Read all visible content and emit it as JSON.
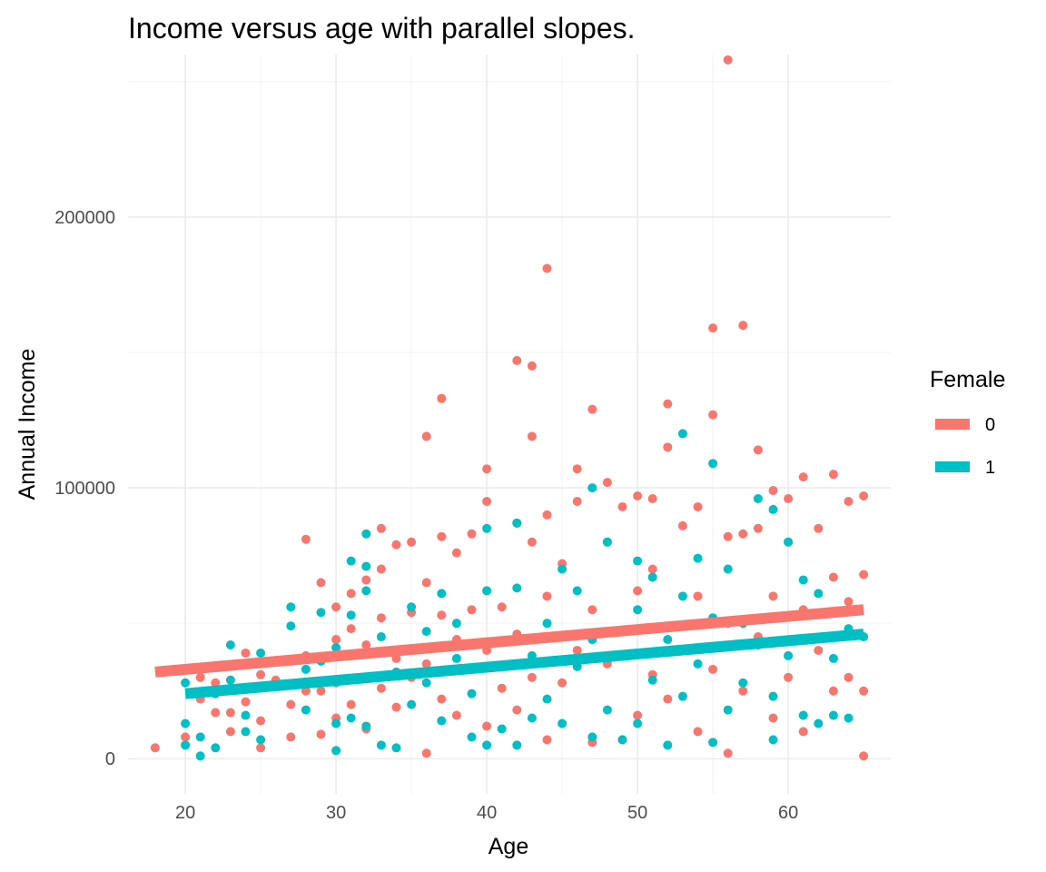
{
  "chart_data": {
    "type": "scatter",
    "title": "Income versus age with parallel slopes.",
    "xlabel": "Age",
    "ylabel": "Annual Income",
    "xlim": [
      16.2,
      66.8
    ],
    "ylim": [
      -13000,
      260000
    ],
    "x_ticks": [
      20,
      30,
      40,
      50,
      60
    ],
    "y_ticks": [
      0,
      100000,
      200000
    ],
    "x_tick_labels": [
      "20",
      "30",
      "40",
      "50",
      "60"
    ],
    "y_tick_labels": [
      "0",
      "100000",
      "200000"
    ],
    "grid": true,
    "legend": {
      "title": "Female",
      "position": "right"
    },
    "series": [
      {
        "name": "0",
        "color": "#F8766D",
        "points": [
          [
            18,
            4000
          ],
          [
            20,
            8000
          ],
          [
            21,
            22000
          ],
          [
            21,
            30000
          ],
          [
            22,
            17000
          ],
          [
            22,
            28000
          ],
          [
            23,
            10000
          ],
          [
            23,
            17000
          ],
          [
            24,
            21000
          ],
          [
            24,
            26000
          ],
          [
            24,
            39000
          ],
          [
            25,
            4000
          ],
          [
            25,
            14000
          ],
          [
            25,
            31000
          ],
          [
            26,
            29000
          ],
          [
            27,
            8000
          ],
          [
            27,
            20000
          ],
          [
            27,
            36000
          ],
          [
            28,
            81000
          ],
          [
            28,
            25000
          ],
          [
            28,
            38000
          ],
          [
            29,
            9000
          ],
          [
            29,
            25000
          ],
          [
            29,
            65000
          ],
          [
            30,
            15000
          ],
          [
            30,
            28000
          ],
          [
            30,
            44000
          ],
          [
            30,
            56000
          ],
          [
            31,
            20000
          ],
          [
            31,
            48000
          ],
          [
            31,
            61000
          ],
          [
            32,
            11000
          ],
          [
            32,
            42000
          ],
          [
            32,
            66000
          ],
          [
            33,
            26000
          ],
          [
            33,
            52000
          ],
          [
            33,
            70000
          ],
          [
            33,
            85000
          ],
          [
            34,
            19000
          ],
          [
            34,
            37000
          ],
          [
            34,
            79000
          ],
          [
            35,
            30000
          ],
          [
            35,
            54000
          ],
          [
            35,
            80000
          ],
          [
            36,
            2000
          ],
          [
            36,
            35000
          ],
          [
            36,
            65000
          ],
          [
            36,
            119000
          ],
          [
            37,
            22000
          ],
          [
            37,
            53000
          ],
          [
            37,
            82000
          ],
          [
            37,
            133000
          ],
          [
            38,
            16000
          ],
          [
            38,
            44000
          ],
          [
            38,
            76000
          ],
          [
            39,
            33000
          ],
          [
            39,
            55000
          ],
          [
            39,
            83000
          ],
          [
            40,
            12000
          ],
          [
            40,
            40000
          ],
          [
            40,
            107000
          ],
          [
            40,
            95000
          ],
          [
            41,
            26000
          ],
          [
            41,
            56000
          ],
          [
            42,
            18000
          ],
          [
            42,
            46000
          ],
          [
            42,
            147000
          ],
          [
            42,
            87000
          ],
          [
            43,
            30000
          ],
          [
            43,
            145000
          ],
          [
            43,
            119000
          ],
          [
            43,
            80000
          ],
          [
            44,
            7000
          ],
          [
            44,
            60000
          ],
          [
            44,
            181000
          ],
          [
            44,
            90000
          ],
          [
            45,
            28000
          ],
          [
            45,
            72000
          ],
          [
            46,
            40000
          ],
          [
            46,
            95000
          ],
          [
            46,
            107000
          ],
          [
            47,
            6000
          ],
          [
            47,
            55000
          ],
          [
            47,
            129000
          ],
          [
            48,
            35000
          ],
          [
            48,
            102000
          ],
          [
            48,
            80000
          ],
          [
            49,
            7000
          ],
          [
            49,
            47000
          ],
          [
            49,
            93000
          ],
          [
            50,
            16000
          ],
          [
            50,
            62000
          ],
          [
            50,
            97000
          ],
          [
            51,
            31000
          ],
          [
            51,
            70000
          ],
          [
            51,
            96000
          ],
          [
            52,
            22000
          ],
          [
            52,
            115000
          ],
          [
            52,
            131000
          ],
          [
            53,
            40000
          ],
          [
            53,
            86000
          ],
          [
            54,
            10000
          ],
          [
            54,
            60000
          ],
          [
            54,
            93000
          ],
          [
            55,
            33000
          ],
          [
            55,
            127000
          ],
          [
            55,
            159000
          ],
          [
            56,
            2000
          ],
          [
            56,
            50000
          ],
          [
            56,
            82000
          ],
          [
            56,
            258000
          ],
          [
            57,
            25000
          ],
          [
            57,
            160000
          ],
          [
            57,
            83000
          ],
          [
            58,
            45000
          ],
          [
            58,
            114000
          ],
          [
            58,
            85000
          ],
          [
            59,
            15000
          ],
          [
            59,
            60000
          ],
          [
            59,
            99000
          ],
          [
            60,
            30000
          ],
          [
            60,
            80000
          ],
          [
            60,
            96000
          ],
          [
            61,
            10000
          ],
          [
            61,
            55000
          ],
          [
            61,
            104000
          ],
          [
            62,
            40000
          ],
          [
            62,
            85000
          ],
          [
            63,
            25000
          ],
          [
            63,
            105000
          ],
          [
            63,
            67000
          ],
          [
            64,
            30000
          ],
          [
            64,
            95000
          ],
          [
            64,
            58000
          ],
          [
            65,
            1000
          ],
          [
            65,
            25000
          ],
          [
            65,
            68000
          ],
          [
            65,
            97000
          ]
        ]
      },
      {
        "name": "1",
        "color": "#00BFC4",
        "points": [
          [
            20,
            5000
          ],
          [
            20,
            13000
          ],
          [
            20,
            28000
          ],
          [
            21,
            1000
          ],
          [
            21,
            8000
          ],
          [
            22,
            4000
          ],
          [
            22,
            24000
          ],
          [
            23,
            42000
          ],
          [
            23,
            29000
          ],
          [
            24,
            10000
          ],
          [
            24,
            16000
          ],
          [
            25,
            7000
          ],
          [
            25,
            39000
          ],
          [
            26,
            27000
          ],
          [
            27,
            49000
          ],
          [
            27,
            56000
          ],
          [
            28,
            18000
          ],
          [
            28,
            33000
          ],
          [
            29,
            36000
          ],
          [
            29,
            54000
          ],
          [
            30,
            3000
          ],
          [
            30,
            13000
          ],
          [
            30,
            41000
          ],
          [
            31,
            15000
          ],
          [
            31,
            73000
          ],
          [
            31,
            53000
          ],
          [
            32,
            12000
          ],
          [
            32,
            62000
          ],
          [
            32,
            83000
          ],
          [
            32,
            71000
          ],
          [
            33,
            5000
          ],
          [
            33,
            45000
          ],
          [
            34,
            4000
          ],
          [
            34,
            32000
          ],
          [
            35,
            56000
          ],
          [
            35,
            20000
          ],
          [
            36,
            47000
          ],
          [
            36,
            28000
          ],
          [
            37,
            61000
          ],
          [
            37,
            14000
          ],
          [
            38,
            37000
          ],
          [
            38,
            50000
          ],
          [
            39,
            8000
          ],
          [
            39,
            24000
          ],
          [
            40,
            5000
          ],
          [
            40,
            62000
          ],
          [
            40,
            85000
          ],
          [
            41,
            11000
          ],
          [
            41,
            34000
          ],
          [
            42,
            5000
          ],
          [
            42,
            63000
          ],
          [
            42,
            87000
          ],
          [
            43,
            15000
          ],
          [
            43,
            38000
          ],
          [
            44,
            22000
          ],
          [
            44,
            50000
          ],
          [
            45,
            13000
          ],
          [
            45,
            70000
          ],
          [
            46,
            34000
          ],
          [
            46,
            62000
          ],
          [
            47,
            8000
          ],
          [
            47,
            100000
          ],
          [
            47,
            44000
          ],
          [
            48,
            18000
          ],
          [
            48,
            80000
          ],
          [
            49,
            7000
          ],
          [
            49,
            38000
          ],
          [
            50,
            13000
          ],
          [
            50,
            55000
          ],
          [
            50,
            73000
          ],
          [
            51,
            29000
          ],
          [
            51,
            67000
          ],
          [
            52,
            5000
          ],
          [
            52,
            44000
          ],
          [
            53,
            23000
          ],
          [
            53,
            120000
          ],
          [
            53,
            60000
          ],
          [
            54,
            35000
          ],
          [
            54,
            74000
          ],
          [
            55,
            6000
          ],
          [
            55,
            109000
          ],
          [
            55,
            52000
          ],
          [
            56,
            18000
          ],
          [
            56,
            70000
          ],
          [
            57,
            28000
          ],
          [
            57,
            50000
          ],
          [
            58,
            96000
          ],
          [
            58,
            42000
          ],
          [
            59,
            7000
          ],
          [
            59,
            92000
          ],
          [
            59,
            23000
          ],
          [
            60,
            38000
          ],
          [
            60,
            80000
          ],
          [
            61,
            16000
          ],
          [
            61,
            66000
          ],
          [
            62,
            13000
          ],
          [
            62,
            61000
          ],
          [
            63,
            37000
          ],
          [
            63,
            16000
          ],
          [
            64,
            15000
          ],
          [
            64,
            48000
          ],
          [
            65,
            45000
          ]
        ]
      }
    ],
    "fit_lines": [
      {
        "name": "0",
        "color": "#F8766D",
        "x": [
          18,
          65
        ],
        "y": [
          32000,
          55000
        ]
      },
      {
        "name": "1",
        "color": "#00BFC4",
        "x": [
          20,
          65
        ],
        "y": [
          24000,
          46000
        ]
      }
    ]
  }
}
